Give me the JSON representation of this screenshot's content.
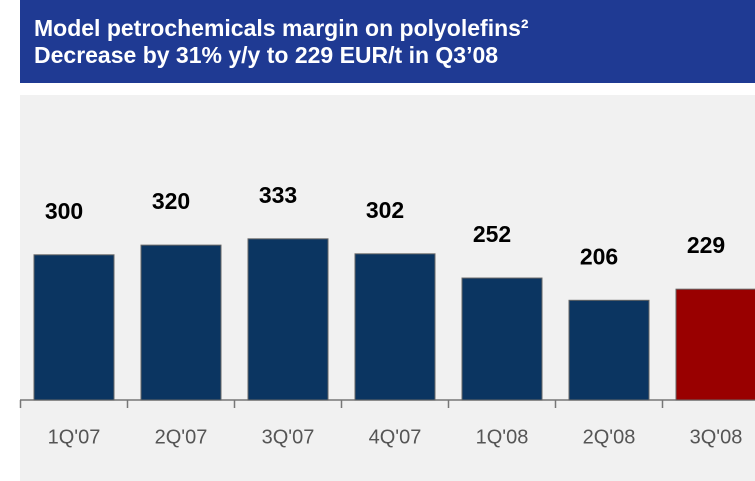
{
  "chart_data": {
    "type": "bar",
    "title": "Model petrochemicals margin on polyolefins²",
    "subtitle": "Decrease by 31% y/y to 229 EUR/t in Q3’08",
    "categories": [
      "1Q'07",
      "2Q'07",
      "3Q'07",
      "4Q'07",
      "1Q'08",
      "2Q'08",
      "3Q'08"
    ],
    "values": [
      300,
      320,
      333,
      302,
      252,
      206,
      229
    ],
    "colors": [
      "#0b3561",
      "#0b3561",
      "#0b3561",
      "#0b3561",
      "#0b3561",
      "#0b3561",
      "#990000"
    ]
  }
}
